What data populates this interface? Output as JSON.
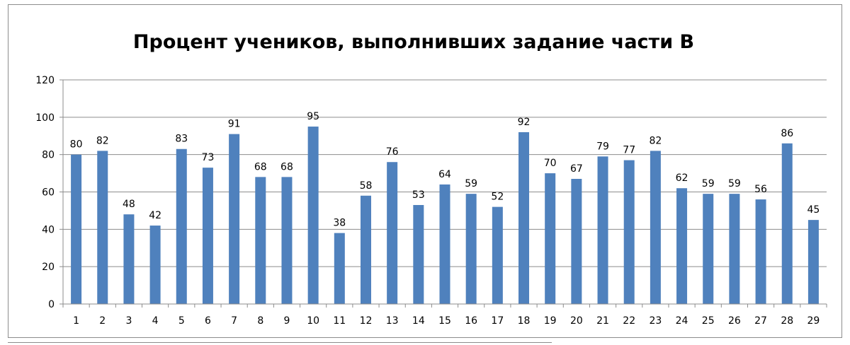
{
  "chart_data": {
    "type": "bar",
    "title": "Процент учеников, выполнивших задание части В",
    "xlabel": "",
    "ylabel": "",
    "ylim": [
      0,
      120
    ],
    "yticks": [
      0,
      20,
      40,
      60,
      80,
      100,
      120
    ],
    "grid": true,
    "legend": "none",
    "bar_color": "#4f81bd",
    "categories": [
      "1",
      "2",
      "3",
      "4",
      "5",
      "6",
      "7",
      "8",
      "9",
      "10",
      "11",
      "12",
      "13",
      "14",
      "15",
      "16",
      "17",
      "18",
      "19",
      "20",
      "21",
      "22",
      "23",
      "24",
      "25",
      "26",
      "27",
      "28",
      "29"
    ],
    "values": [
      80,
      82,
      48,
      42,
      83,
      73,
      91,
      68,
      68,
      95,
      38,
      58,
      76,
      53,
      64,
      59,
      52,
      92,
      70,
      67,
      79,
      77,
      82,
      62,
      59,
      59,
      56,
      86,
      45
    ]
  }
}
